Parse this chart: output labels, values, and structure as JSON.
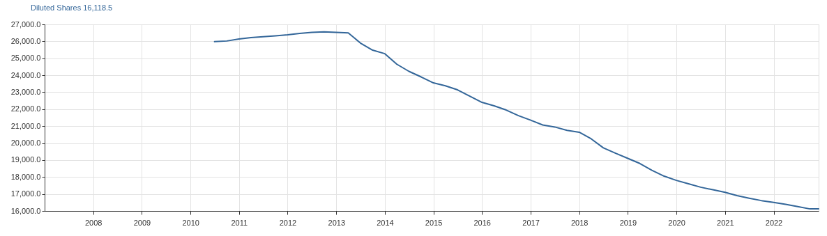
{
  "chart_data": {
    "type": "line",
    "x": [
      "2010-07",
      "2010-10",
      "2011-01",
      "2011-04",
      "2011-07",
      "2011-10",
      "2012-01",
      "2012-04",
      "2012-07",
      "2012-10",
      "2013-01",
      "2013-04",
      "2013-07",
      "2013-10",
      "2014-01",
      "2014-04",
      "2014-07",
      "2014-10",
      "2015-01",
      "2015-04",
      "2015-07",
      "2015-10",
      "2016-01",
      "2016-04",
      "2016-07",
      "2016-10",
      "2017-01",
      "2017-04",
      "2017-07",
      "2017-10",
      "2018-01",
      "2018-04",
      "2018-07",
      "2018-10",
      "2019-01",
      "2019-04",
      "2019-07",
      "2019-10",
      "2020-01",
      "2020-04",
      "2020-07",
      "2020-10",
      "2021-01",
      "2021-04",
      "2021-07",
      "2021-10",
      "2022-01",
      "2022-04",
      "2022-07",
      "2022-10",
      "2022-12-05"
    ],
    "series": [
      {
        "name": "Diluted Shares 16,118.5",
        "color": "#336699",
        "values": [
          25980,
          26020,
          26140,
          26220,
          26270,
          26320,
          26380,
          26470,
          26530,
          26560,
          26530,
          26500,
          25900,
          25480,
          25270,
          24650,
          24230,
          23900,
          23550,
          23380,
          23140,
          22770,
          22400,
          22200,
          21950,
          21620,
          21350,
          21070,
          20950,
          20750,
          20640,
          20250,
          19720,
          19400,
          19100,
          18800,
          18400,
          18050,
          17800,
          17600,
          17400,
          17250,
          17100,
          16900,
          16750,
          16610,
          16500,
          16390,
          16260,
          16118.5,
          16118.5
        ]
      }
    ],
    "xlim": [
      "2007-01",
      "2022-12-05"
    ],
    "xticks": [
      "2008",
      "2009",
      "2010",
      "2011",
      "2012",
      "2013",
      "2014",
      "2015",
      "2016",
      "2017",
      "2018",
      "2019",
      "2020",
      "2021",
      "2022"
    ],
    "ylim": [
      16000,
      27000
    ],
    "yticks": [
      {
        "value": 16000,
        "label": "16,000.0"
      },
      {
        "value": 17000,
        "label": "17,000.0"
      },
      {
        "value": 18000,
        "label": "18,000.0"
      },
      {
        "value": 19000,
        "label": "19,000.0"
      },
      {
        "value": 20000,
        "label": "20,000.0"
      },
      {
        "value": 21000,
        "label": "21,000.0"
      },
      {
        "value": 22000,
        "label": "22,000.0"
      },
      {
        "value": 23000,
        "label": "23,000.0"
      },
      {
        "value": 24000,
        "label": "24,000.0"
      },
      {
        "value": 25000,
        "label": "25,000.0"
      },
      {
        "value": 26000,
        "label": "26,000.0"
      },
      {
        "value": 27000,
        "label": "27,000.0"
      }
    ],
    "grid": true,
    "marker": "none",
    "line_style": "solid"
  }
}
